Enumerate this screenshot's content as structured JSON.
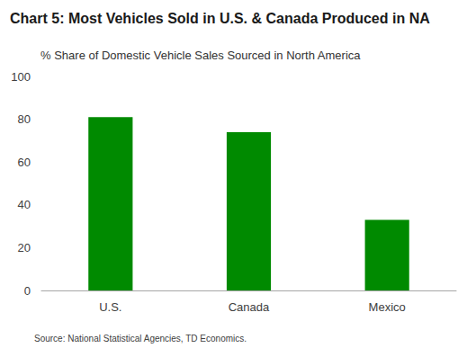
{
  "chart_data": {
    "type": "bar",
    "title": "Chart 5: Most Vehicles Sold in U.S. & Canada Produced in NA",
    "subtitle": "% Share of Domestic Vehicle Sales Sourced in North America",
    "source": "Source: National Statistical Agencies, TD Economics.",
    "categories": [
      "U.S.",
      "Canada",
      "Mexico"
    ],
    "values": [
      81,
      74,
      33
    ],
    "color": "#008a00",
    "ylim": [
      0,
      100
    ],
    "yticks": [
      0,
      20,
      40,
      60,
      80,
      100
    ],
    "grid": false
  }
}
